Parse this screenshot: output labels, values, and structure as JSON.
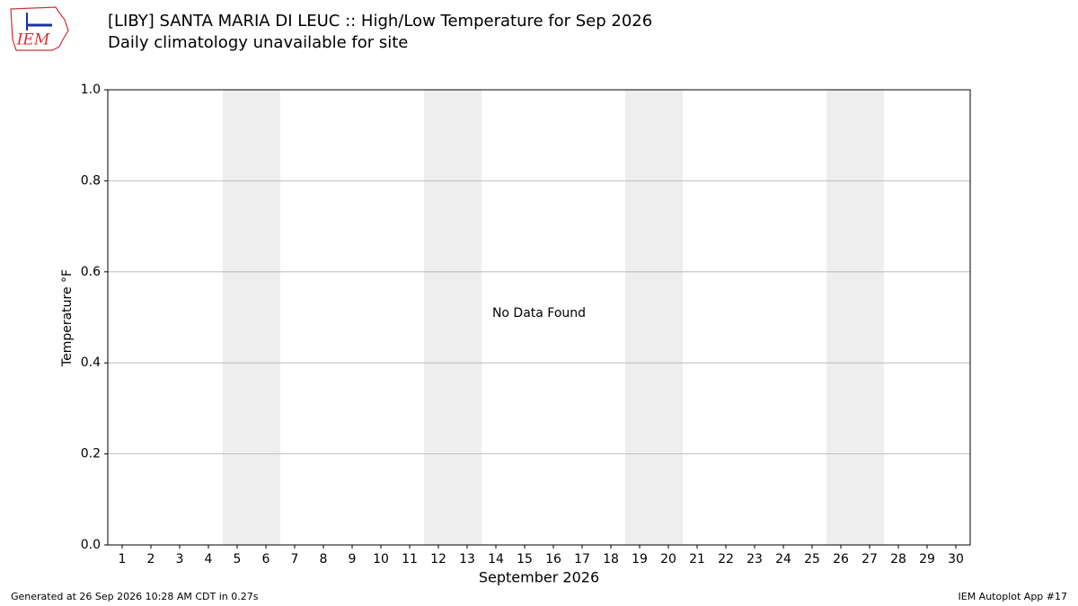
{
  "chart_data": {
    "type": "line",
    "title": "[LIBY] SANTA MARIA DI LEUC :: High/Low Temperature for Sep 2026",
    "subtitle": "Daily climatology unavailable for site",
    "annotation": "No Data Found",
    "x_label": "September 2026",
    "y_label": "Temperature °F",
    "xlim": [
      0.5,
      30.5
    ],
    "xticks": [
      1,
      2,
      3,
      4,
      5,
      6,
      7,
      8,
      9,
      10,
      11,
      12,
      13,
      14,
      15,
      16,
      17,
      18,
      19,
      20,
      21,
      22,
      23,
      24,
      25,
      26,
      27,
      28,
      29,
      30
    ],
    "ylim": [
      0,
      1
    ],
    "yticks": [
      {
        "value": 0,
        "label": "0.0"
      },
      0.2,
      0.4,
      0.6,
      0.8,
      {
        "value": 1,
        "label": "1.0"
      }
    ],
    "grid": true,
    "shaded_days": [
      5,
      6,
      12,
      13,
      19,
      20,
      26,
      27
    ],
    "shade_color": "#eeeeee",
    "logo_text": "IEM",
    "footer_left": "Generated at 26 Sep 2026 10:28 AM CDT in 0.27s",
    "footer_right": "IEM Autoplot App #17"
  }
}
